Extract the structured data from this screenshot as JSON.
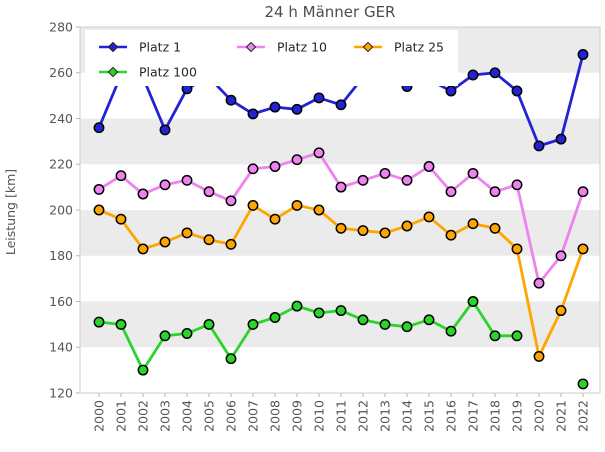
{
  "title": "24 h Männer GER",
  "axes": {
    "ylabel": "Leistung [km]"
  },
  "colors": {
    "background": "#ffffff",
    "band": "#ebebeb",
    "spine": "#cccccc",
    "tick_text": "#555555",
    "title_text": "#4d4d4d",
    "legend_text": "#262626",
    "marker_edge": "#000000",
    "platz1": "#2323d6",
    "platz10": "#ee82ee",
    "platz25": "#ffa500",
    "platz100": "#2bd42b"
  },
  "chart_data": {
    "type": "line",
    "title": "24 h Männer GER",
    "xlabel": "",
    "ylabel": "Leistung [km]",
    "x": [
      2000,
      2001,
      2002,
      2003,
      2004,
      2005,
      2006,
      2007,
      2008,
      2009,
      2010,
      2011,
      2012,
      2013,
      2014,
      2015,
      2016,
      2017,
      2018,
      2019,
      2020,
      2021,
      2022
    ],
    "ylim": [
      120,
      280
    ],
    "ytick_step": 20,
    "grid": "alternating horizontal gray bands every 20 km",
    "legend_position": "upper left inside plot, 3 columns, white box over data",
    "series": [
      {
        "name": "Platz 1",
        "color": "#2323d6",
        "values": [
          236,
          259,
          258,
          235,
          253,
          258,
          248,
          242,
          245,
          244,
          249,
          246,
          258,
          259,
          254,
          257,
          252,
          259,
          260,
          252,
          228,
          231,
          268
        ],
        "note": "points for 2001, 2002, 2005, 2012, 2013, 2015 are hidden behind the legend box; those values are estimated from visible line slopes"
      },
      {
        "name": "Platz 10",
        "color": "#ee82ee",
        "values": [
          209,
          215,
          207,
          211,
          213,
          208,
          204,
          218,
          219,
          222,
          225,
          210,
          213,
          216,
          213,
          219,
          208,
          216,
          208,
          211,
          168,
          180,
          208
        ]
      },
      {
        "name": "Platz 25",
        "color": "#ffa500",
        "values": [
          200,
          196,
          183,
          186,
          190,
          187,
          185,
          202,
          196,
          202,
          200,
          192,
          191,
          190,
          193,
          197,
          189,
          194,
          192,
          183,
          136,
          156,
          183
        ]
      },
      {
        "name": "Platz 100",
        "color": "#2bd42b",
        "values": [
          151,
          150,
          130,
          145,
          146,
          150,
          135,
          150,
          153,
          158,
          155,
          156,
          152,
          150,
          149,
          152,
          147,
          160,
          145,
          145,
          null,
          null,
          124
        ],
        "note": "no data for 2020 and 2021 (line gap); 2022 is an isolated point"
      }
    ]
  }
}
